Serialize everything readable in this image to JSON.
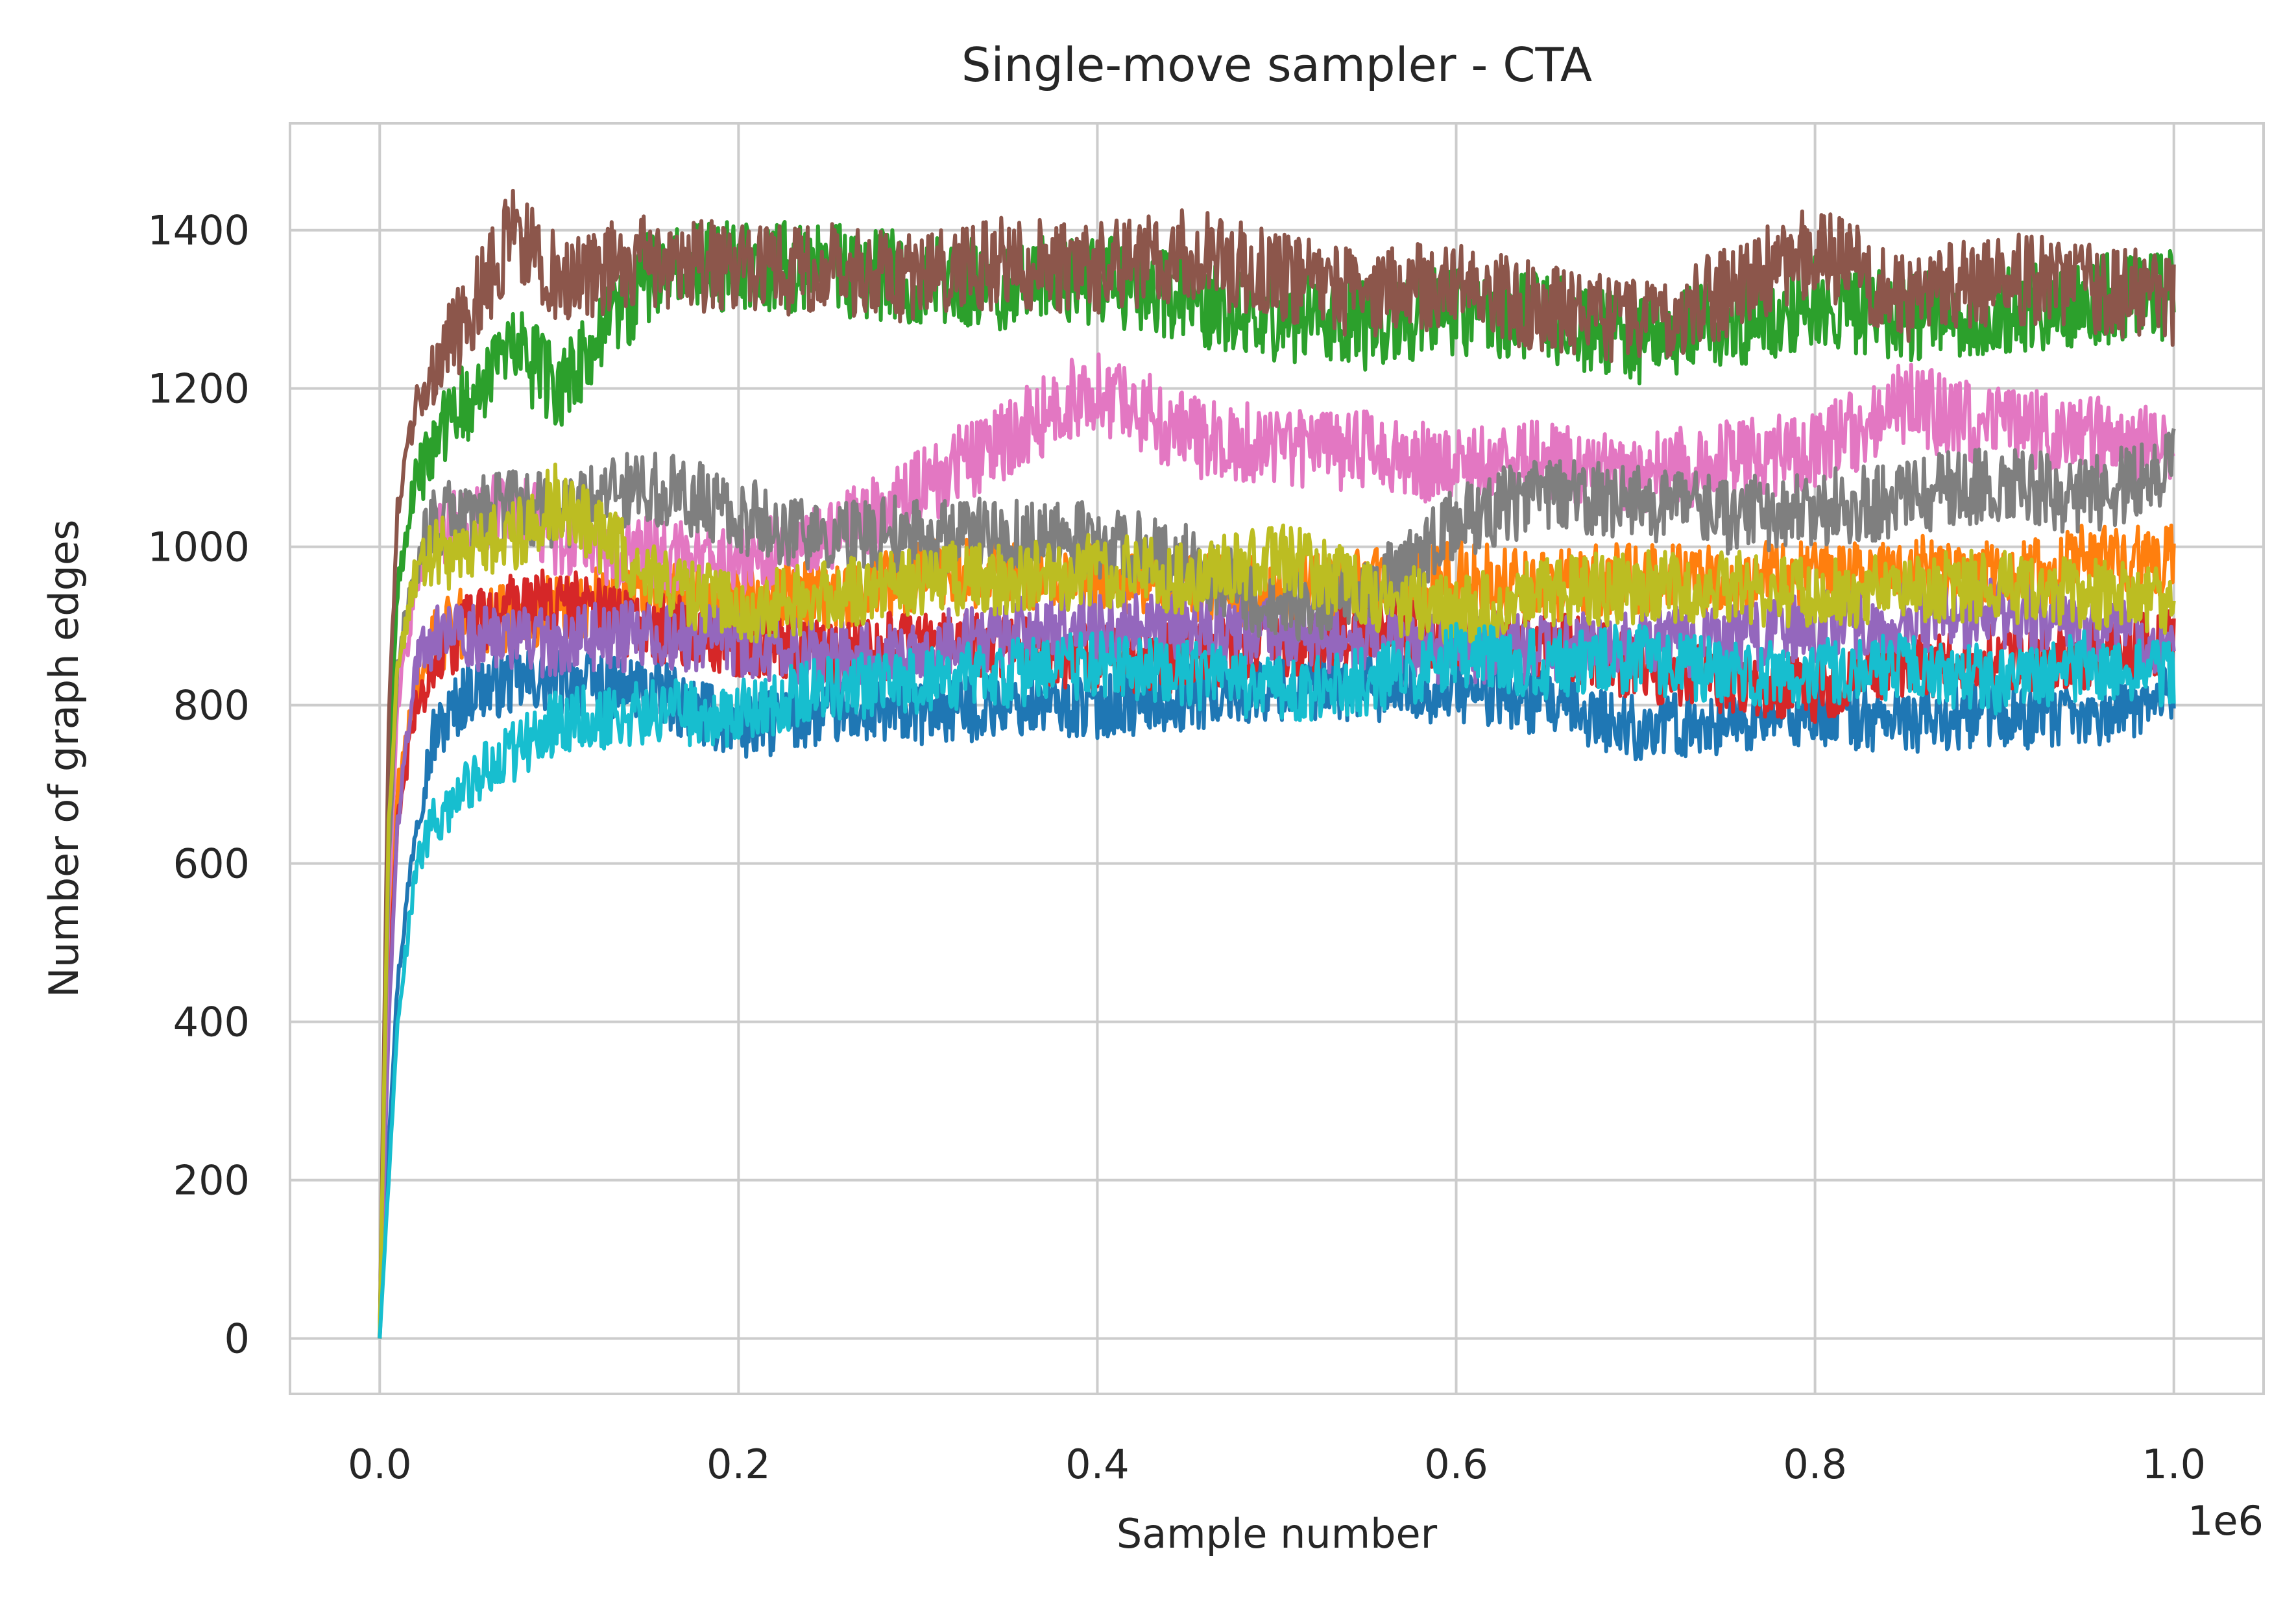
{
  "chart_data": {
    "type": "line",
    "title": "Single-move sampler - CTA",
    "xlabel": "Sample number",
    "ylabel": "Number of graph edges",
    "x_offset_label": "1e6",
    "xlim": [
      -0.05,
      1.05
    ],
    "ylim": [
      -70,
      1535
    ],
    "x_scale_multiplier": 1000000,
    "xticks": [
      0.0,
      0.2,
      0.4,
      0.6,
      0.8,
      1.0
    ],
    "xtick_labels": [
      "0.0",
      "0.2",
      "0.4",
      "0.6",
      "0.8",
      "1.0"
    ],
    "yticks": [
      0,
      200,
      400,
      600,
      800,
      1000,
      1200,
      1400
    ],
    "ytick_labels": [
      "0",
      "200",
      "400",
      "600",
      "800",
      "1000",
      "1200",
      "1400"
    ],
    "grid": true,
    "legend": false,
    "x": [
      0.0,
      0.005,
      0.01,
      0.02,
      0.03,
      0.05,
      0.075,
      0.1,
      0.15,
      0.2,
      0.25,
      0.3,
      0.35,
      0.4,
      0.45,
      0.5,
      0.55,
      0.6,
      0.65,
      0.7,
      0.75,
      0.8,
      0.85,
      0.9,
      0.95,
      1.0
    ],
    "series": [
      {
        "color": "#1f77b4",
        "values": [
          0,
          250,
          450,
          650,
          760,
          820,
          830,
          830,
          820,
          770,
          790,
          790,
          800,
          800,
          810,
          820,
          820,
          820,
          800,
          770,
          780,
          790,
          780,
          790,
          780,
          820
        ]
      },
      {
        "color": "#ff7f0e",
        "values": [
          0,
          500,
          700,
          820,
          880,
          910,
          910,
          920,
          940,
          930,
          940,
          960,
          970,
          960,
          950,
          940,
          950,
          960,
          950,
          960,
          960,
          960,
          970,
          960,
          980,
          980
        ]
      },
      {
        "color": "#2ca02c",
        "values": [
          0,
          700,
          950,
          1080,
          1130,
          1190,
          1250,
          1200,
          1340,
          1360,
          1350,
          1340,
          1330,
          1340,
          1310,
          1290,
          1280,
          1300,
          1290,
          1260,
          1280,
          1310,
          1290,
          1300,
          1310,
          1320
        ]
      },
      {
        "color": "#d62728",
        "values": [
          0,
          450,
          650,
          800,
          850,
          900,
          920,
          930,
          900,
          880,
          860,
          880,
          870,
          860,
          860,
          880,
          890,
          890,
          880,
          850,
          830,
          820,
          850,
          860,
          860,
          880
        ]
      },
      {
        "color": "#9467bd",
        "values": [
          0,
          400,
          650,
          850,
          880,
          890,
          880,
          880,
          890,
          880,
          860,
          870,
          890,
          900,
          900,
          890,
          880,
          870,
          870,
          880,
          880,
          900,
          910,
          920,
          900,
          880
        ]
      },
      {
        "color": "#8c564b",
        "values": [
          0,
          780,
          1050,
          1180,
          1230,
          1290,
          1400,
          1340,
          1360,
          1350,
          1350,
          1340,
          1360,
          1350,
          1370,
          1340,
          1320,
          1330,
          1300,
          1280,
          1320,
          1380,
          1310,
          1340,
          1330,
          1310
        ]
      },
      {
        "color": "#e377c2",
        "values": [
          0,
          550,
          800,
          950,
          1000,
          1040,
          1050,
          1010,
          990,
          980,
          1010,
          1070,
          1140,
          1200,
          1140,
          1130,
          1120,
          1100,
          1110,
          1090,
          1110,
          1120,
          1180,
          1150,
          1140,
          1120
        ]
      },
      {
        "color": "#7f7f7f",
        "values": [
          0,
          600,
          850,
          980,
          1030,
          1040,
          1050,
          1040,
          1080,
          1040,
          1010,
          1020,
          1010,
          1010,
          980,
          920,
          940,
          1030,
          1070,
          1060,
          1040,
          1050,
          1060,
          1080,
          1060,
          1100
        ]
      },
      {
        "color": "#bcbd22",
        "values": [
          0,
          650,
          850,
          960,
          990,
          1000,
          1010,
          1060,
          960,
          920,
          940,
          960,
          960,
          970,
          960,
          990,
          940,
          920,
          940,
          950,
          950,
          940,
          950,
          950,
          940,
          930
        ]
      },
      {
        "color": "#17becf",
        "values": [
          0,
          200,
          400,
          600,
          660,
          700,
          740,
          780,
          790,
          790,
          820,
          830,
          840,
          850,
          840,
          820,
          830,
          860,
          850,
          860,
          840,
          840,
          850,
          830,
          850,
          840
        ]
      }
    ]
  }
}
